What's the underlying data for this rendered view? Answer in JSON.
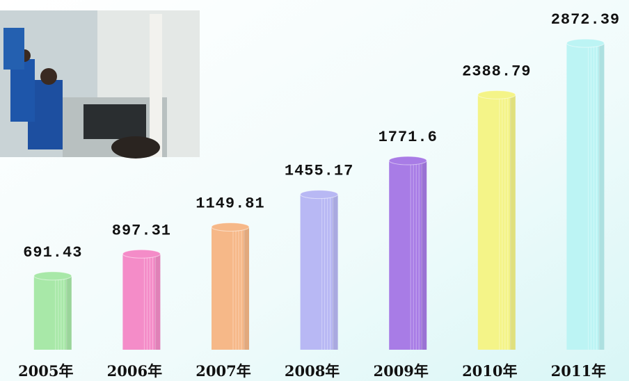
{
  "chart_data": {
    "type": "bar",
    "categories": [
      "2005年",
      "2006年",
      "2007年",
      "2008年",
      "2009年",
      "2010年",
      "2011年"
    ],
    "values": [
      691.43,
      897.31,
      1149.81,
      1455.17,
      1771.6,
      2388.79,
      2872.39
    ],
    "colors": [
      "#a8e8a8",
      "#f48cc8",
      "#f6b888",
      "#b8b8f4",
      "#a87ce6",
      "#f4f488",
      "#bcf4f4"
    ]
  }
}
